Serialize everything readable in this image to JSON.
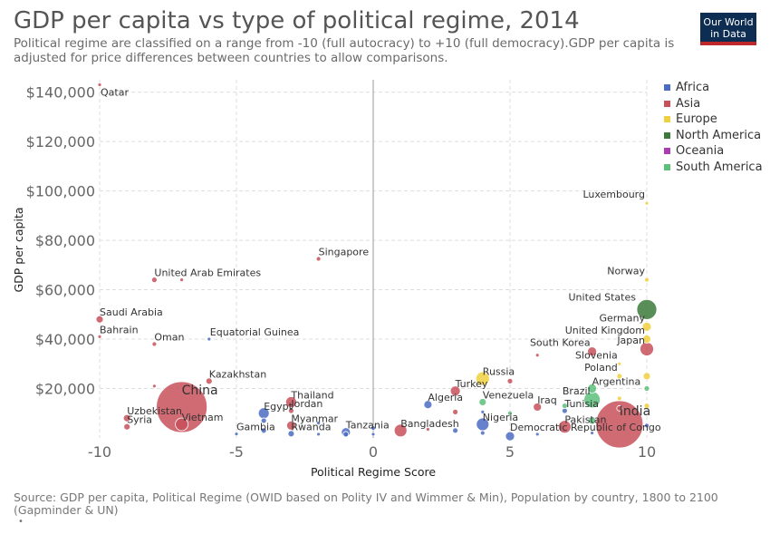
{
  "header": {
    "title": "GDP per capita vs type of political regime, 2014",
    "subtitle": "Political regime are classified on a range from -10 (full autocracy) to +10 (full democracy).GDP per capita is adjusted for price differences between countries to allow comparisons.",
    "logo_line1": "Our World",
    "logo_line2": "in Data"
  },
  "footer": {
    "source": "Source: GDP per capita, Political Regime (OWID based on Polity IV and Wimmer & Min), Population by country, 1800 to 2100 (Gapminder & UN)",
    "note": "•"
  },
  "chart_data": {
    "type": "scatter",
    "title": "GDP per capita vs type of political regime, 2014",
    "xlabel": "Political Regime Score",
    "ylabel": "GDP per capita",
    "xlim": [
      -10,
      10
    ],
    "ylim": [
      0,
      145000
    ],
    "x_ticks": [
      -10,
      -5,
      0,
      5,
      10
    ],
    "x_tick_labels": [
      "-10",
      "-5",
      "0",
      "5",
      "10"
    ],
    "y_ticks": [
      20000,
      40000,
      60000,
      80000,
      100000,
      120000,
      140000
    ],
    "y_tick_labels": [
      "$20,000",
      "$40,000",
      "$60,000",
      "$80,000",
      "$100,000",
      "$120,000",
      "$140,000"
    ],
    "grid": true,
    "legend_position": "right",
    "series": [
      {
        "name": "Africa",
        "color": "#4c6cc4"
      },
      {
        "name": "Asia",
        "color": "#c8505a"
      },
      {
        "name": "Europe",
        "color": "#f0d040"
      },
      {
        "name": "North America",
        "color": "#3c7a3c"
      },
      {
        "name": "Oceania",
        "color": "#a83cb0"
      },
      {
        "name": "South America",
        "color": "#5cbf7a"
      }
    ],
    "points": [
      {
        "label": "Qatar",
        "x": -10,
        "y": 143000,
        "region": "Asia",
        "size": 2
      },
      {
        "label": "Saudi Arabia",
        "x": -10,
        "y": 48000,
        "region": "Asia",
        "size": 4
      },
      {
        "label": "Bahrain",
        "x": -10,
        "y": 41000,
        "region": "Asia",
        "size": 2
      },
      {
        "label": "United Arab Emirates",
        "x": -8,
        "y": 64000,
        "region": "Asia",
        "size": 3
      },
      {
        "label": "",
        "x": -7,
        "y": 64000,
        "region": "Asia",
        "size": 2
      },
      {
        "label": "Oman",
        "x": -8,
        "y": 38000,
        "region": "Asia",
        "size": 2.5
      },
      {
        "label": "",
        "x": -8,
        "y": 21000,
        "region": "Asia",
        "size": 2
      },
      {
        "label": "Equatorial Guinea",
        "x": -6,
        "y": 40000,
        "region": "Africa",
        "size": 2
      },
      {
        "label": "Kazakhstan",
        "x": -6,
        "y": 23000,
        "region": "Asia",
        "size": 3.5
      },
      {
        "label": "China",
        "x": -7,
        "y": 12500,
        "region": "Asia",
        "size": 28
      },
      {
        "label": "Vietnam",
        "x": -7,
        "y": 5500,
        "region": "Asia",
        "size": 7
      },
      {
        "label": "Uzbekistan",
        "x": -9,
        "y": 8000,
        "region": "Asia",
        "size": 4
      },
      {
        "label": "Syria",
        "x": -9,
        "y": 4500,
        "region": "Asia",
        "size": 3.5
      },
      {
        "label": "Gambia",
        "x": -5,
        "y": 1600,
        "region": "Africa",
        "size": 2
      },
      {
        "label": "Egypt",
        "x": -4,
        "y": 10000,
        "region": "Africa",
        "size": 6
      },
      {
        "label": "",
        "x": -4,
        "y": 7000,
        "region": "Africa",
        "size": 3
      },
      {
        "label": "",
        "x": -4,
        "y": 3000,
        "region": "Africa",
        "size": 3
      },
      {
        "label": "Thailand",
        "x": -3,
        "y": 14500,
        "region": "Asia",
        "size": 6
      },
      {
        "label": "Jordan",
        "x": -3,
        "y": 11000,
        "region": "Asia",
        "size": 3
      },
      {
        "label": "Myanmar",
        "x": -3,
        "y": 5000,
        "region": "Asia",
        "size": 5
      },
      {
        "label": "Rwanda",
        "x": -3,
        "y": 1700,
        "region": "Africa",
        "size": 3.5
      },
      {
        "label": "",
        "x": -2,
        "y": 6000,
        "region": "Africa",
        "size": 2
      },
      {
        "label": "",
        "x": -2,
        "y": 1500,
        "region": "Africa",
        "size": 2
      },
      {
        "label": "Singapore",
        "x": -2,
        "y": 72500,
        "region": "Asia",
        "size": 2.5
      },
      {
        "label": "Tanzania",
        "x": -1,
        "y": 2300,
        "region": "Africa",
        "size": 5
      },
      {
        "label": "",
        "x": -1,
        "y": 1500,
        "region": "Africa",
        "size": 3
      },
      {
        "label": "",
        "x": 0,
        "y": 4000,
        "region": "Africa",
        "size": 2.5
      },
      {
        "label": "",
        "x": 0,
        "y": 1500,
        "region": "Africa",
        "size": 2
      },
      {
        "label": "Bangladesh",
        "x": 1,
        "y": 3000,
        "region": "Asia",
        "size": 7
      },
      {
        "label": "",
        "x": 2,
        "y": 3500,
        "region": "Asia",
        "size": 2
      },
      {
        "label": "Algeria",
        "x": 2,
        "y": 13500,
        "region": "Africa",
        "size": 4.5
      },
      {
        "label": "Turkey",
        "x": 3,
        "y": 19000,
        "region": "Asia",
        "size": 5.5
      },
      {
        "label": "",
        "x": 3,
        "y": 10500,
        "region": "Asia",
        "size": 3
      },
      {
        "label": "",
        "x": 3,
        "y": 3000,
        "region": "Africa",
        "size": 3
      },
      {
        "label": "Russia",
        "x": 4,
        "y": 24000,
        "region": "Europe",
        "size": 7.5
      },
      {
        "label": "Venezuela",
        "x": 4,
        "y": 14500,
        "region": "South America",
        "size": 4
      },
      {
        "label": "",
        "x": 4,
        "y": 10500,
        "region": "Africa",
        "size": 2
      },
      {
        "label": "Nigeria",
        "x": 4,
        "y": 5500,
        "region": "Africa",
        "size": 7
      },
      {
        "label": "",
        "x": 4,
        "y": 2000,
        "region": "Africa",
        "size": 2.5
      },
      {
        "label": "",
        "x": 5,
        "y": 23000,
        "region": "Asia",
        "size": 3
      },
      {
        "label": "",
        "x": 5,
        "y": 10000,
        "region": "South America",
        "size": 2.5
      },
      {
        "label": "Democratic Republic of Congo",
        "x": 5,
        "y": 700,
        "region": "Africa",
        "size": 5
      },
      {
        "label": "",
        "x": 6,
        "y": 33500,
        "region": "Asia",
        "size": 2
      },
      {
        "label": "Iraq",
        "x": 6,
        "y": 12500,
        "region": "Asia",
        "size": 4.5
      },
      {
        "label": "",
        "x": 6,
        "y": 1500,
        "region": "Africa",
        "size": 2
      },
      {
        "label": "South Korea",
        "x": 8,
        "y": 35000,
        "region": "Asia",
        "size": 5
      },
      {
        "label": "Tunisia",
        "x": 7,
        "y": 11000,
        "region": "Africa",
        "size": 3
      },
      {
        "label": "Pakistan",
        "x": 7,
        "y": 4500,
        "region": "Asia",
        "size": 7
      },
      {
        "label": "",
        "x": 7,
        "y": 13000,
        "region": "South America",
        "size": 3
      },
      {
        "label": "Argentina",
        "x": 8,
        "y": 20000,
        "region": "South America",
        "size": 5
      },
      {
        "label": "Brazil",
        "x": 8,
        "y": 15500,
        "region": "South America",
        "size": 9
      },
      {
        "label": "",
        "x": 8,
        "y": 7000,
        "region": "South America",
        "size": 4
      },
      {
        "label": "",
        "x": 8,
        "y": 2000,
        "region": "Africa",
        "size": 2
      },
      {
        "label": "Slovenia",
        "x": 9,
        "y": 30000,
        "region": "Europe",
        "size": 2
      },
      {
        "label": "Poland",
        "x": 9,
        "y": 25000,
        "region": "Europe",
        "size": 3
      },
      {
        "label": "",
        "x": 9,
        "y": 16000,
        "region": "Europe",
        "size": 2.5
      },
      {
        "label": "India",
        "x": 9,
        "y": 5500,
        "region": "Asia",
        "size": 26
      },
      {
        "label": "",
        "x": 9,
        "y": 12000,
        "region": "Asia",
        "size": 3
      },
      {
        "label": "Japan",
        "x": 10,
        "y": 36000,
        "region": "Asia",
        "size": 7.5
      },
      {
        "label": "Luxembourg",
        "x": 10,
        "y": 95000,
        "region": "Europe",
        "size": 2
      },
      {
        "label": "Norway",
        "x": 10,
        "y": 64000,
        "region": "Europe",
        "size": 2.5
      },
      {
        "label": "United States",
        "x": 10,
        "y": 52000,
        "region": "North America",
        "size": 11
      },
      {
        "label": "Germany",
        "x": 10,
        "y": 45000,
        "region": "Europe",
        "size": 5
      },
      {
        "label": "United Kingdom",
        "x": 10,
        "y": 40000,
        "region": "Europe",
        "size": 4.5
      },
      {
        "label": "",
        "x": 10,
        "y": 25000,
        "region": "Europe",
        "size": 4
      },
      {
        "label": "",
        "x": 10,
        "y": 20000,
        "region": "South America",
        "size": 3
      },
      {
        "label": "",
        "x": 10,
        "y": 13000,
        "region": "Europe",
        "size": 3
      },
      {
        "label": "",
        "x": 10,
        "y": 5000,
        "region": "Africa",
        "size": 2.5
      }
    ]
  }
}
